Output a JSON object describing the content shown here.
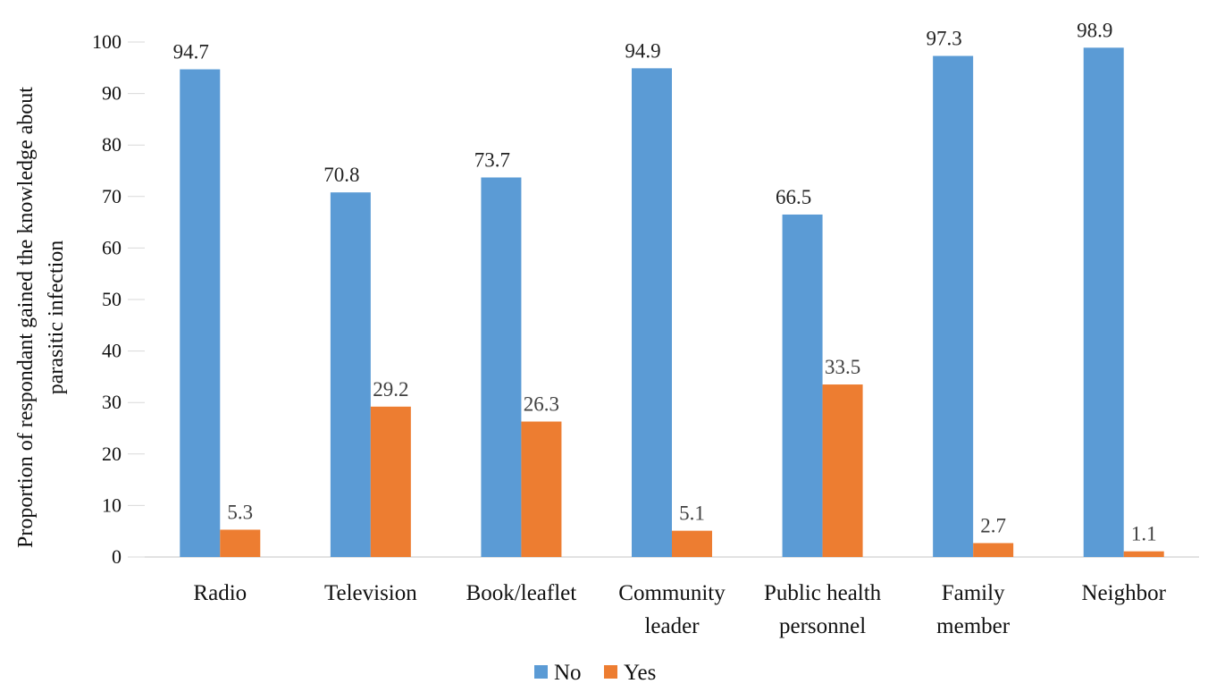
{
  "chart_data": {
    "type": "bar",
    "title": "",
    "xlabel": "",
    "ylabel_lines": [
      "Proportion of respondant gained the knowledge  about",
      "parasitic infection"
    ],
    "categories": [
      [
        "Radio"
      ],
      [
        "Television"
      ],
      [
        "Book/leaflet"
      ],
      [
        "Community",
        "leader"
      ],
      [
        "Public health",
        "personnel"
      ],
      [
        "Family",
        "member"
      ],
      [
        "Neighbor"
      ]
    ],
    "series": [
      {
        "name": "No",
        "color": "#5B9BD5",
        "values": [
          94.7,
          70.8,
          73.7,
          94.9,
          66.5,
          97.3,
          98.9
        ]
      },
      {
        "name": "Yes",
        "color": "#ED7D31",
        "values": [
          5.3,
          29.2,
          26.3,
          5.1,
          33.5,
          2.7,
          1.1
        ]
      }
    ],
    "ylim": [
      0,
      100
    ],
    "yticks": [
      0,
      10,
      20,
      30,
      40,
      50,
      60,
      70,
      80,
      90,
      100
    ],
    "grid": false,
    "legend_position": "bottom"
  }
}
